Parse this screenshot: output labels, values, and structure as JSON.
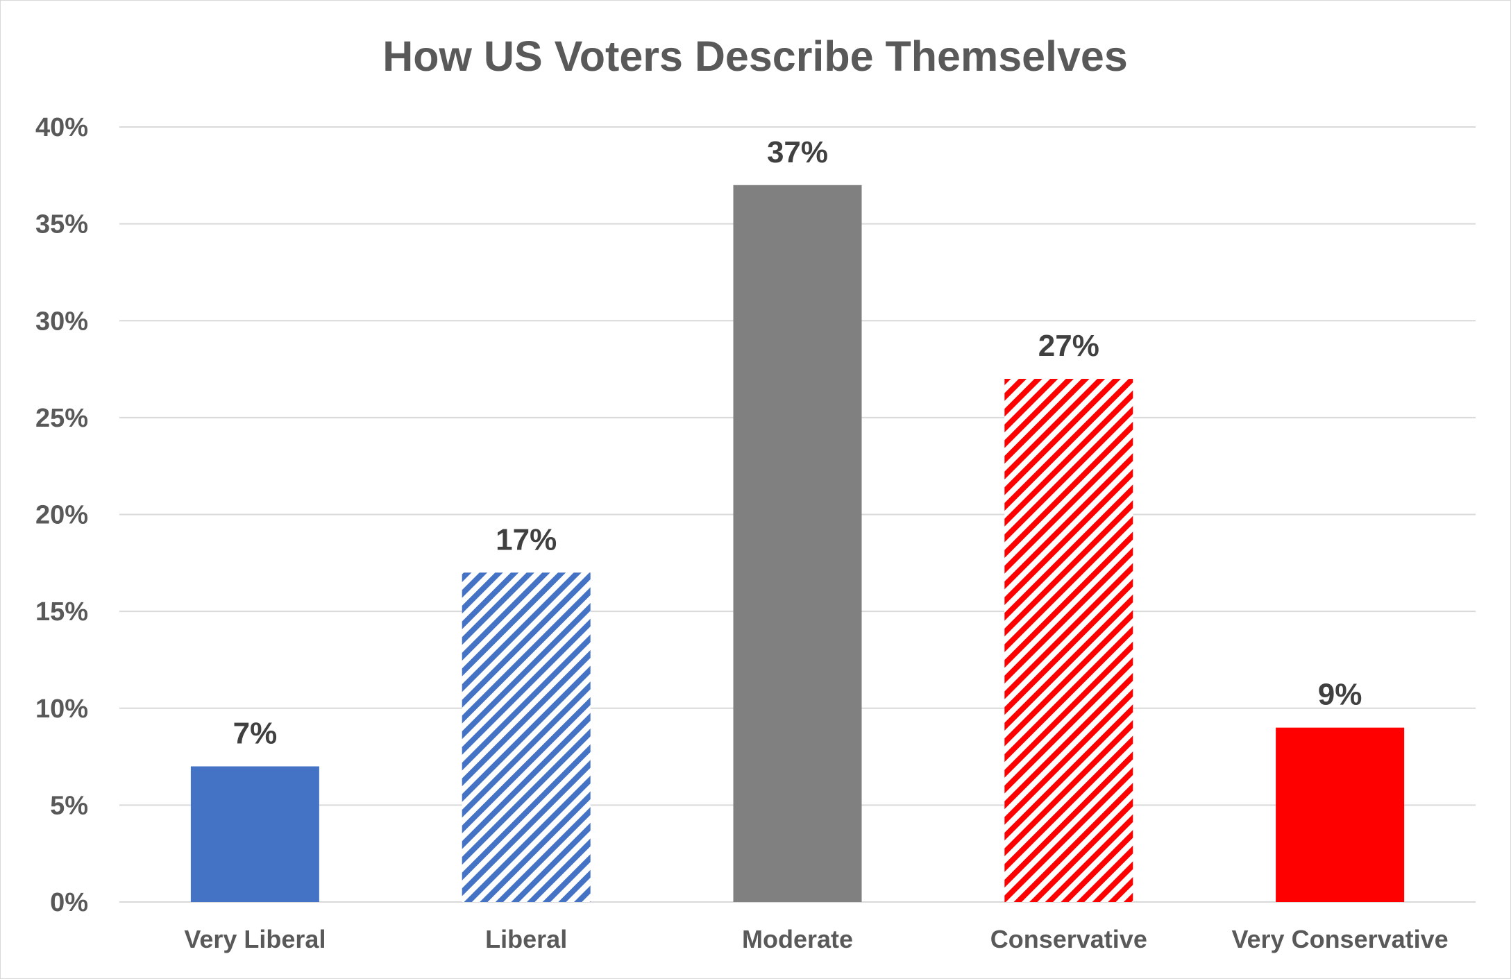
{
  "chart_data": {
    "type": "bar",
    "title": "How US Voters Describe Themselves",
    "xlabel": "",
    "ylabel": "",
    "ylim": [
      0,
      40
    ],
    "ytick_values": [
      0,
      5,
      10,
      15,
      20,
      25,
      30,
      35,
      40
    ],
    "ytick_labels": [
      "0%",
      "5%",
      "10%",
      "15%",
      "20%",
      "25%",
      "30%",
      "35%",
      "40%"
    ],
    "categories": [
      "Very Liberal",
      "Liberal",
      "Moderate",
      "Conservative",
      "Very Conservative"
    ],
    "values": [
      7,
      17,
      37,
      27,
      9
    ],
    "data_labels": [
      "7%",
      "17%",
      "37%",
      "27%",
      "9%"
    ],
    "bar_styles": [
      {
        "color": "#4472c4",
        "fill": "solid"
      },
      {
        "color": "#4472c4",
        "fill": "striped"
      },
      {
        "color": "#808080",
        "fill": "solid"
      },
      {
        "color": "#ff0000",
        "fill": "striped"
      },
      {
        "color": "#ff0000",
        "fill": "solid"
      }
    ],
    "grid": true,
    "legend": "none"
  }
}
